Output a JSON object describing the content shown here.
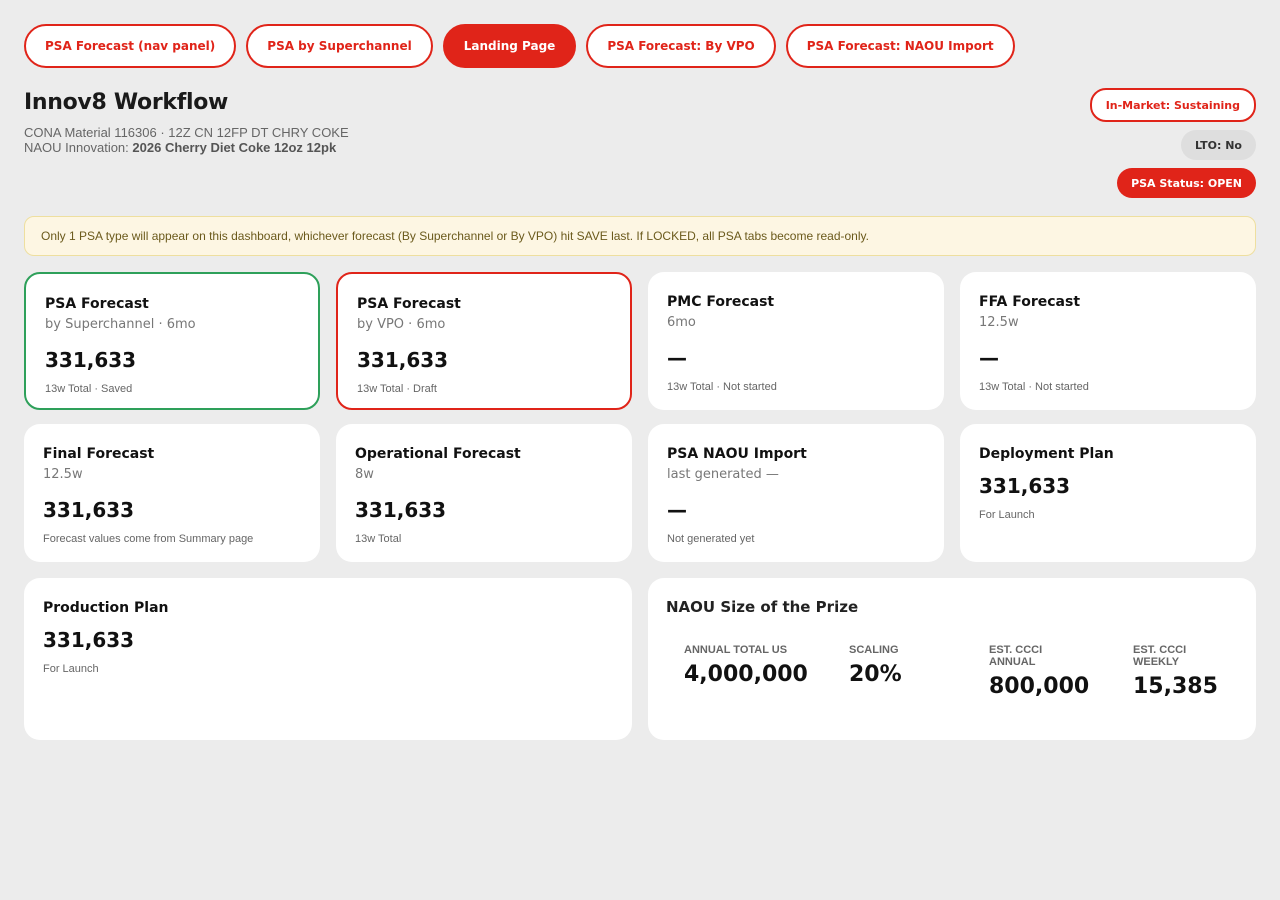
{
  "tabs": [
    {
      "label": "PSA Forecast (nav panel)",
      "active": false
    },
    {
      "label": "PSA by Superchannel",
      "active": false
    },
    {
      "label": "Landing Page",
      "active": true
    },
    {
      "label": "PSA Forecast: By VPO",
      "active": false
    },
    {
      "label": "PSA Forecast: NAOU Import",
      "active": false
    }
  ],
  "header": {
    "title": "Innov8 Workflow",
    "material_line": "CONA Material 116306  ·  12Z CN 12FP DT CHRY COKE",
    "innovation_label": "NAOU Innovation:",
    "innovation_value": "2026 Cherry Diet Coke 12oz 12pk"
  },
  "badges": {
    "market": "In-Market: Sustaining",
    "lto": "LTO: No",
    "psa_status": "PSA Status: OPEN"
  },
  "notice": "Only 1 PSA type will appear on this dashboard, whichever forecast (By Superchannel or By VPO) hit SAVE last. If LOCKED, all PSA tabs become read-only.",
  "cards": {
    "psa_super": {
      "title": "PSA Forecast",
      "sub": "by Superchannel · 6mo",
      "value": "331,633",
      "foot": "13w Total  ·  Saved"
    },
    "psa_vpo": {
      "title": "PSA Forecast",
      "sub": "by VPO · 6mo",
      "value": "331,633",
      "foot": "13w Total  ·  Draft"
    },
    "pmc": {
      "title": "PMC Forecast",
      "sub": "6mo",
      "value": "—",
      "foot": "13w Total  ·  Not started"
    },
    "ffa": {
      "title": "FFA Forecast",
      "sub": "12.5w",
      "value": "—",
      "foot": "13w Total  ·  Not started"
    },
    "final": {
      "title": "Final Forecast",
      "sub": "12.5w",
      "value": "331,633",
      "foot": "Forecast values come from Summary page"
    },
    "operational": {
      "title": "Operational Forecast",
      "sub": "8w",
      "value": "331,633",
      "foot": "13w Total"
    },
    "naou_import": {
      "title": "PSA NAOU Import",
      "sub": "last generated —",
      "value": "—",
      "foot": "Not generated yet"
    },
    "deployment": {
      "title": "Deployment Plan",
      "value": "331,633",
      "foot": "For Launch"
    },
    "production": {
      "title": "Production Plan",
      "value": "331,633",
      "foot": "For Launch"
    }
  },
  "prize": {
    "title": "NAOU Size of the Prize",
    "metrics": [
      {
        "label": "ANNUAL TOTAL US",
        "value": "4,000,000"
      },
      {
        "label": "SCALING",
        "value": "20%"
      },
      {
        "label": "EST. CCCI ANNUAL",
        "value": "800,000"
      },
      {
        "label": "EST. CCCI WEEKLY",
        "value": "15,385"
      }
    ]
  }
}
